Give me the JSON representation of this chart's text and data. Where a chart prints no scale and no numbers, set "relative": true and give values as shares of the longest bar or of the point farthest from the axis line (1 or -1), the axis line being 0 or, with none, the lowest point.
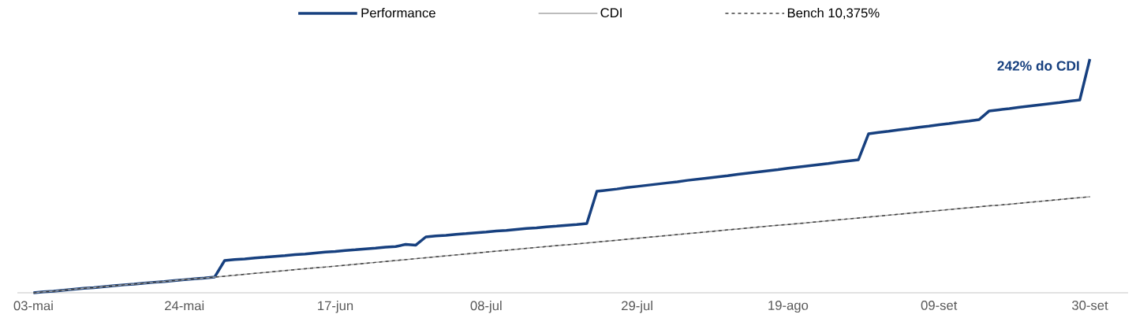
{
  "chart_data": {
    "type": "line",
    "relative": true,
    "legend": "top",
    "categories": [
      "03-mai",
      null,
      null,
      null,
      null,
      null,
      null,
      null,
      null,
      null,
      null,
      null,
      null,
      null,
      null,
      "24-mai",
      null,
      null,
      null,
      null,
      null,
      null,
      null,
      null,
      null,
      null,
      null,
      null,
      null,
      null,
      "17-jun",
      null,
      null,
      null,
      null,
      null,
      null,
      null,
      null,
      null,
      null,
      null,
      null,
      null,
      null,
      "08-jul",
      null,
      null,
      null,
      null,
      null,
      null,
      null,
      null,
      null,
      null,
      null,
      null,
      null,
      null,
      "29-jul",
      null,
      null,
      null,
      null,
      null,
      null,
      null,
      null,
      null,
      null,
      null,
      null,
      null,
      null,
      "19-ago",
      null,
      null,
      null,
      null,
      null,
      null,
      null,
      null,
      null,
      null,
      null,
      null,
      null,
      null,
      "09-set",
      null,
      null,
      null,
      null,
      null,
      null,
      null,
      null,
      null,
      null,
      null,
      null,
      null,
      null,
      "30-set"
    ],
    "series": [
      {
        "name": "Performance",
        "color": "#17407f",
        "line_style": "solid",
        "values": [
          0,
          0.004,
          0.007,
          0.011,
          0.015,
          0.019,
          0.022,
          0.026,
          0.03,
          0.034,
          0.037,
          0.041,
          0.045,
          0.048,
          0.052,
          0.056,
          0.06,
          0.063,
          0.067,
          0.138,
          0.142,
          0.145,
          0.149,
          0.152,
          0.156,
          0.159,
          0.163,
          0.166,
          0.17,
          0.174,
          0.177,
          0.181,
          0.184,
          0.188,
          0.191,
          0.195,
          0.198,
          0.207,
          0.204,
          0.239,
          0.243,
          0.246,
          0.25,
          0.253,
          0.257,
          0.26,
          0.264,
          0.267,
          0.271,
          0.275,
          0.278,
          0.282,
          0.285,
          0.289,
          0.292,
          0.296,
          0.434,
          0.439,
          0.444,
          0.45,
          0.455,
          0.46,
          0.465,
          0.47,
          0.475,
          0.481,
          0.486,
          0.491,
          0.496,
          0.501,
          0.507,
          0.512,
          0.517,
          0.522,
          0.527,
          0.533,
          0.538,
          0.543,
          0.548,
          0.553,
          0.559,
          0.564,
          0.569,
          0.68,
          0.686,
          0.691,
          0.697,
          0.702,
          0.708,
          0.713,
          0.719,
          0.724,
          0.73,
          0.735,
          0.741,
          0.778,
          0.783,
          0.788,
          0.794,
          0.799,
          0.804,
          0.809,
          0.814,
          0.82,
          0.825,
          1.0
        ]
      },
      {
        "name": "CDI",
        "color": "#a6a6a6",
        "line_style": "solid",
        "values": [
          0,
          0.004,
          0.007,
          0.011,
          0.015,
          0.019,
          0.022,
          0.026,
          0.03,
          0.034,
          0.037,
          0.041,
          0.045,
          0.048,
          0.052,
          0.056,
          0.06,
          0.063,
          0.067,
          0.071,
          0.075,
          0.079,
          0.083,
          0.087,
          0.091,
          0.095,
          0.099,
          0.103,
          0.107,
          0.11,
          0.114,
          0.118,
          0.122,
          0.126,
          0.13,
          0.134,
          0.138,
          0.142,
          0.146,
          0.15,
          0.154,
          0.158,
          0.162,
          0.166,
          0.17,
          0.174,
          0.178,
          0.182,
          0.186,
          0.19,
          0.194,
          0.198,
          0.202,
          0.205,
          0.209,
          0.213,
          0.217,
          0.221,
          0.225,
          0.229,
          0.233,
          0.237,
          0.241,
          0.245,
          0.249,
          0.253,
          0.257,
          0.261,
          0.265,
          0.269,
          0.273,
          0.277,
          0.281,
          0.285,
          0.289,
          0.292,
          0.296,
          0.3,
          0.304,
          0.308,
          0.312,
          0.316,
          0.32,
          0.324,
          0.328,
          0.332,
          0.336,
          0.34,
          0.344,
          0.348,
          0.352,
          0.356,
          0.36,
          0.364,
          0.368,
          0.372,
          0.375,
          0.379,
          0.383,
          0.387,
          0.391,
          0.395,
          0.399,
          0.403,
          0.407,
          0.411
        ]
      },
      {
        "name": "Bench 10,375%",
        "color": "#404040",
        "line_style": "dashed",
        "values": [
          0,
          0.004,
          0.007,
          0.011,
          0.015,
          0.019,
          0.022,
          0.026,
          0.03,
          0.034,
          0.037,
          0.041,
          0.045,
          0.048,
          0.052,
          0.056,
          0.06,
          0.063,
          0.067,
          0.071,
          0.075,
          0.079,
          0.083,
          0.087,
          0.091,
          0.095,
          0.099,
          0.103,
          0.107,
          0.11,
          0.114,
          0.118,
          0.122,
          0.126,
          0.13,
          0.134,
          0.138,
          0.142,
          0.146,
          0.15,
          0.154,
          0.158,
          0.162,
          0.166,
          0.17,
          0.174,
          0.178,
          0.182,
          0.186,
          0.19,
          0.194,
          0.198,
          0.202,
          0.205,
          0.209,
          0.213,
          0.217,
          0.221,
          0.225,
          0.229,
          0.233,
          0.237,
          0.241,
          0.245,
          0.249,
          0.253,
          0.257,
          0.261,
          0.265,
          0.269,
          0.273,
          0.277,
          0.281,
          0.285,
          0.289,
          0.292,
          0.296,
          0.3,
          0.304,
          0.308,
          0.312,
          0.316,
          0.32,
          0.324,
          0.328,
          0.332,
          0.336,
          0.34,
          0.344,
          0.348,
          0.352,
          0.356,
          0.36,
          0.364,
          0.368,
          0.372,
          0.375,
          0.379,
          0.383,
          0.387,
          0.391,
          0.395,
          0.399,
          0.403,
          0.407,
          0.411
        ]
      }
    ],
    "annotations": [
      "242% do CDI"
    ]
  }
}
